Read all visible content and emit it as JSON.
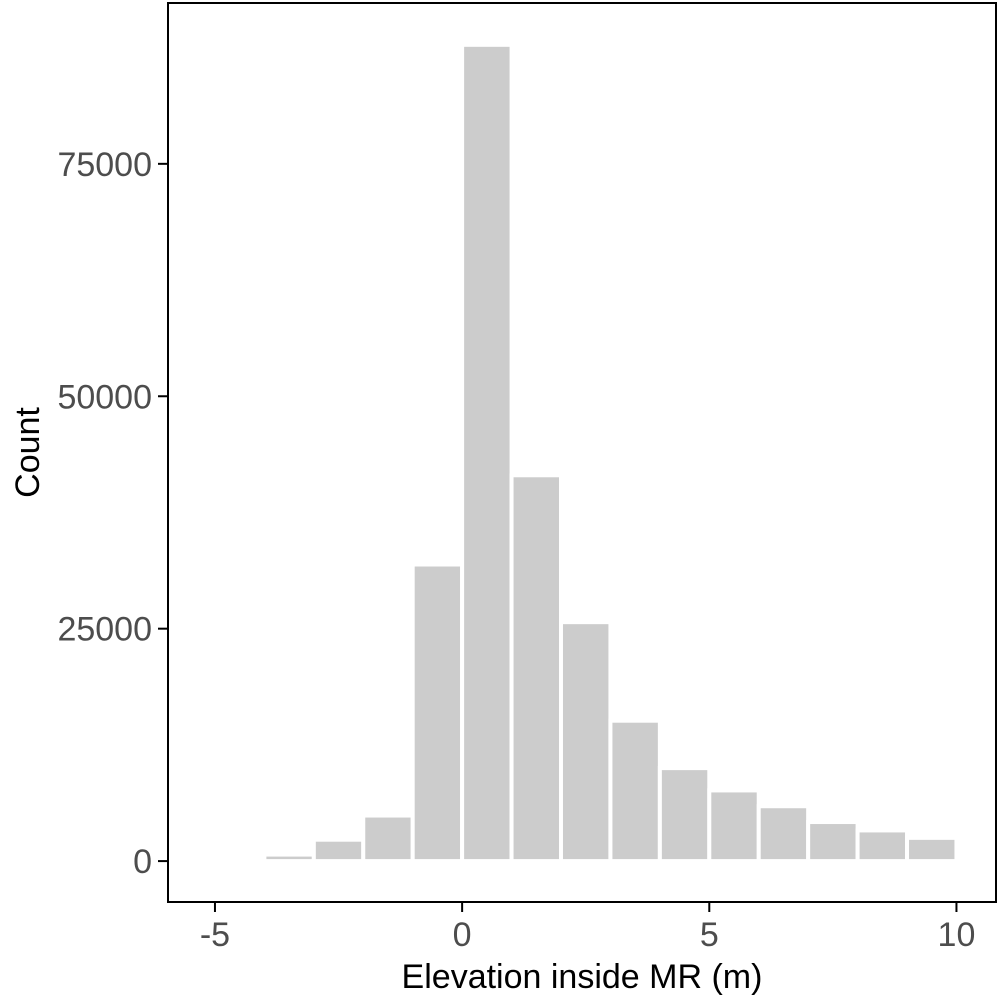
{
  "chart_data": {
    "type": "bar",
    "title": "",
    "xlabel": "Elevation inside MR (m)",
    "ylabel": "Count",
    "bin_width": 1,
    "bins": [
      {
        "x0": -4,
        "x1": -3,
        "count": 700
      },
      {
        "x0": -3,
        "x1": -2,
        "count": 2300
      },
      {
        "x0": -2,
        "x1": -1,
        "count": 4900
      },
      {
        "x0": -1,
        "x1": 0,
        "count": 31900
      },
      {
        "x0": 0,
        "x1": 1,
        "count": 87800
      },
      {
        "x0": 1,
        "x1": 2,
        "count": 41500
      },
      {
        "x0": 2,
        "x1": 3,
        "count": 25700
      },
      {
        "x0": 3,
        "x1": 4,
        "count": 15100
      },
      {
        "x0": 4,
        "x1": 5,
        "count": 10000
      },
      {
        "x0": 5,
        "x1": 6,
        "count": 7600
      },
      {
        "x0": 6,
        "x1": 7,
        "count": 5900
      },
      {
        "x0": 7,
        "x1": 8,
        "count": 4200
      },
      {
        "x0": 8,
        "x1": 9,
        "count": 3300
      },
      {
        "x0": 9,
        "x1": 10,
        "count": 2500
      }
    ],
    "xlim": [
      -5.95,
      10.8
    ],
    "ylim": [
      -4400,
      92300
    ],
    "xticks": [
      -5,
      0,
      5,
      10
    ],
    "xtick_labels": [
      "-5",
      "0",
      "5",
      "10"
    ],
    "yticks": [
      0,
      25000,
      50000,
      75000
    ],
    "ytick_labels": [
      "0",
      "25000",
      "50000",
      "75000"
    ],
    "grid": false,
    "legend": "none",
    "bar_color": "#cccccc",
    "bar_edge_color": "#ffffff",
    "axis_color": "#000000",
    "tick_label_color": "#4d4d4d"
  }
}
